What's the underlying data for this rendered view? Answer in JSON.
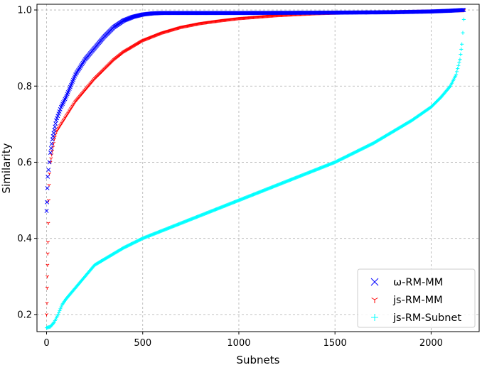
{
  "chart_data": {
    "type": "scatter",
    "xlabel": "Subnets",
    "ylabel": "Similarity",
    "xlim": [
      -50,
      2250
    ],
    "ylim": [
      0.155,
      1.015
    ],
    "xticks": [
      0,
      500,
      1000,
      1500,
      2000
    ],
    "yticks": [
      0.2,
      0.4,
      0.6,
      0.8,
      1.0
    ],
    "xtick_labels": [
      "0",
      "500",
      "1000",
      "1500",
      "2000"
    ],
    "ytick_labels": [
      "0.2",
      "0.4",
      "0.6",
      "0.8",
      "1.0"
    ],
    "grid": true,
    "legend_position": "lower-right",
    "series": [
      {
        "name": "ω-RM-MM",
        "color": "#0000ff",
        "marker": "x",
        "points": [
          [
            0,
            0.472
          ],
          [
            2,
            0.495
          ],
          [
            4,
            0.532
          ],
          [
            6,
            0.562
          ],
          [
            10,
            0.58
          ],
          [
            15,
            0.6
          ],
          [
            20,
            0.625
          ],
          [
            30,
            0.66
          ],
          [
            40,
            0.685
          ],
          [
            50,
            0.71
          ],
          [
            75,
            0.745
          ],
          [
            100,
            0.77
          ],
          [
            150,
            0.83
          ],
          [
            200,
            0.87
          ],
          [
            250,
            0.9
          ],
          [
            300,
            0.93
          ],
          [
            350,
            0.955
          ],
          [
            400,
            0.972
          ],
          [
            450,
            0.982
          ],
          [
            500,
            0.988
          ],
          [
            550,
            0.991
          ],
          [
            600,
            0.992
          ],
          [
            800,
            0.992
          ],
          [
            1000,
            0.992
          ],
          [
            1500,
            0.993
          ],
          [
            1800,
            0.994
          ],
          [
            2000,
            0.996
          ],
          [
            2100,
            0.998
          ],
          [
            2170,
            1.0
          ]
        ]
      },
      {
        "name": "js-RM-MM",
        "color": "#ff0000",
        "marker": "tri_down",
        "points": [
          [
            0,
            0.2
          ],
          [
            2,
            0.23
          ],
          [
            3,
            0.27
          ],
          [
            4,
            0.3
          ],
          [
            5,
            0.33
          ],
          [
            6,
            0.36
          ],
          [
            7,
            0.39
          ],
          [
            9,
            0.44
          ],
          [
            11,
            0.5
          ],
          [
            13,
            0.54
          ],
          [
            15,
            0.57
          ],
          [
            20,
            0.6
          ],
          [
            30,
            0.63
          ],
          [
            40,
            0.66
          ],
          [
            50,
            0.68
          ],
          [
            75,
            0.7
          ],
          [
            100,
            0.72
          ],
          [
            150,
            0.76
          ],
          [
            200,
            0.79
          ],
          [
            250,
            0.82
          ],
          [
            300,
            0.845
          ],
          [
            350,
            0.87
          ],
          [
            400,
            0.89
          ],
          [
            450,
            0.905
          ],
          [
            500,
            0.92
          ],
          [
            600,
            0.94
          ],
          [
            700,
            0.955
          ],
          [
            800,
            0.965
          ],
          [
            900,
            0.972
          ],
          [
            1000,
            0.978
          ],
          [
            1200,
            0.986
          ],
          [
            1400,
            0.991
          ],
          [
            1600,
            0.994
          ],
          [
            1800,
            0.996
          ],
          [
            2000,
            0.998
          ],
          [
            2170,
            0.999
          ]
        ]
      },
      {
        "name": "js-RM-Subnet",
        "color": "#00ffff",
        "marker": "+",
        "points": [
          [
            0,
            0.165
          ],
          [
            20,
            0.168
          ],
          [
            40,
            0.18
          ],
          [
            60,
            0.2
          ],
          [
            80,
            0.225
          ],
          [
            100,
            0.24
          ],
          [
            150,
            0.27
          ],
          [
            200,
            0.3
          ],
          [
            250,
            0.33
          ],
          [
            300,
            0.345
          ],
          [
            400,
            0.375
          ],
          [
            500,
            0.4
          ],
          [
            600,
            0.42
          ],
          [
            700,
            0.44
          ],
          [
            800,
            0.46
          ],
          [
            900,
            0.48
          ],
          [
            1000,
            0.5
          ],
          [
            1100,
            0.52
          ],
          [
            1200,
            0.54
          ],
          [
            1300,
            0.56
          ],
          [
            1400,
            0.58
          ],
          [
            1500,
            0.6
          ],
          [
            1600,
            0.625
          ],
          [
            1700,
            0.65
          ],
          [
            1800,
            0.68
          ],
          [
            1900,
            0.71
          ],
          [
            2000,
            0.745
          ],
          [
            2050,
            0.77
          ],
          [
            2100,
            0.8
          ],
          [
            2130,
            0.83
          ],
          [
            2150,
            0.87
          ],
          [
            2160,
            0.91
          ],
          [
            2165,
            0.94
          ],
          [
            2170,
            0.975
          ]
        ]
      }
    ]
  }
}
